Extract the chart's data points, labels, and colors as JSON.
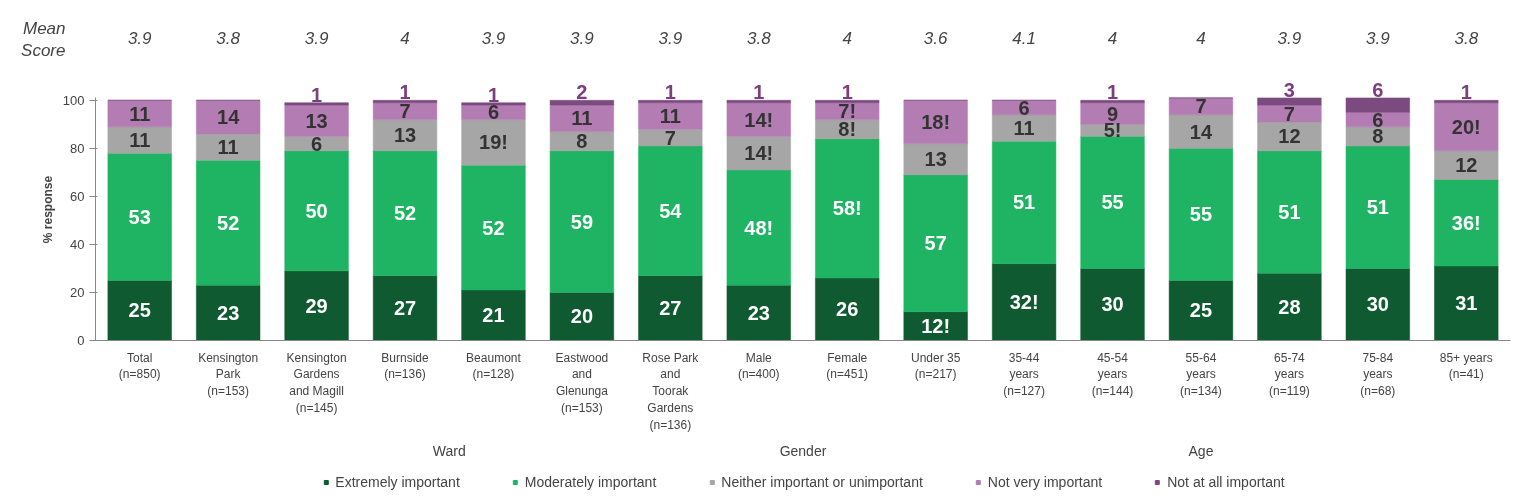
{
  "chart_data": {
    "type": "bar",
    "stacked": true,
    "ylabel": "% response",
    "categories": [
      "Total\n(n=850)",
      "Kensington\nPark\n(n=153)",
      "Kensington\nGardens\nand Magill\n(n=145)",
      "Burnside\n(n=136)",
      "Beaumont\n(n=128)",
      "Eastwood\nand\nGlenunga\n(n=153)",
      "Rose Park\nand\nToorak\nGardens\n(n=136)",
      "Male\n(n=400)",
      "Female\n(n=451)",
      "Under 35\n(n=217)",
      "35-44\nyears\n(n=127)",
      "45-54\nyears\n(n=144)",
      "55-64\nyears\n(n=134)",
      "65-74\nyears\n(n=119)",
      "75-84\nyears\n(n=68)",
      "85+ years\n(n=41)"
    ],
    "series": [
      {
        "name": "Extremely important",
        "color": "#0f5a30",
        "values": [
          25,
          23,
          29,
          27,
          21,
          20,
          27,
          23,
          26,
          12,
          32,
          30,
          25,
          28,
          30,
          31
        ],
        "value_labels": [
          "25",
          "23",
          "29",
          "27",
          "21",
          "20",
          "27",
          "23",
          "26",
          "12!",
          "32!",
          "30",
          "25",
          "28",
          "30",
          "31"
        ]
      },
      {
        "name": "Moderately important",
        "color": "#1fb463",
        "values": [
          53,
          52,
          50,
          52,
          52,
          59,
          54,
          48,
          58,
          57,
          51,
          55,
          55,
          51,
          51,
          36
        ],
        "value_labels": [
          "53",
          "52",
          "50",
          "52",
          "52",
          "59",
          "54",
          "48!",
          "58!",
          "57",
          "51",
          "55",
          "55",
          "51",
          "51",
          "36!"
        ]
      },
      {
        "name": "Neither important or unimportant",
        "color": "#a6a6a6",
        "values": [
          11,
          11,
          6,
          13,
          19,
          8,
          7,
          14,
          8,
          13,
          11,
          5,
          14,
          12,
          8,
          12
        ],
        "value_labels": [
          "11",
          "11",
          "6",
          "13",
          "19!",
          "8",
          "7",
          "14!",
          "8!",
          "13",
          "11",
          "5!",
          "14",
          "12",
          "8",
          "12"
        ]
      },
      {
        "name": "Not very important",
        "color": "#b37db3",
        "values": [
          11,
          14,
          13,
          7,
          6,
          11,
          11,
          14,
          7,
          18,
          6,
          9,
          7,
          7,
          6,
          20
        ],
        "value_labels": [
          "11",
          "14",
          "13",
          "7",
          "6",
          "11",
          "11",
          "14!",
          "7!",
          "18!",
          "6",
          "9",
          "7",
          "7",
          "6",
          "20!"
        ]
      },
      {
        "name": "Not at all important",
        "color": "#7b4a7e",
        "values": [
          0,
          0,
          1,
          1,
          1,
          2,
          1,
          1,
          1,
          0,
          0,
          1,
          0,
          3,
          6,
          1
        ],
        "value_labels": [
          null,
          null,
          "1",
          "1",
          "1",
          "2",
          "1",
          "1",
          "1",
          null,
          null,
          "1",
          null,
          "3",
          "6",
          "1"
        ]
      }
    ],
    "ylim": [
      0,
      101
    ],
    "yticks": [
      0,
      20,
      40,
      60,
      80,
      100
    ],
    "grid": false,
    "legend": "bottom",
    "annotations": [
      "Mean\nScore",
      "3.9",
      "3.8",
      "3.9",
      "4",
      "3.9",
      "3.9",
      "3.9",
      "3.8",
      "4",
      "3.6",
      "4.1",
      "4",
      "4",
      "3.9",
      "3.9",
      "3.8",
      "Ward",
      "Gender",
      "Age"
    ]
  }
}
